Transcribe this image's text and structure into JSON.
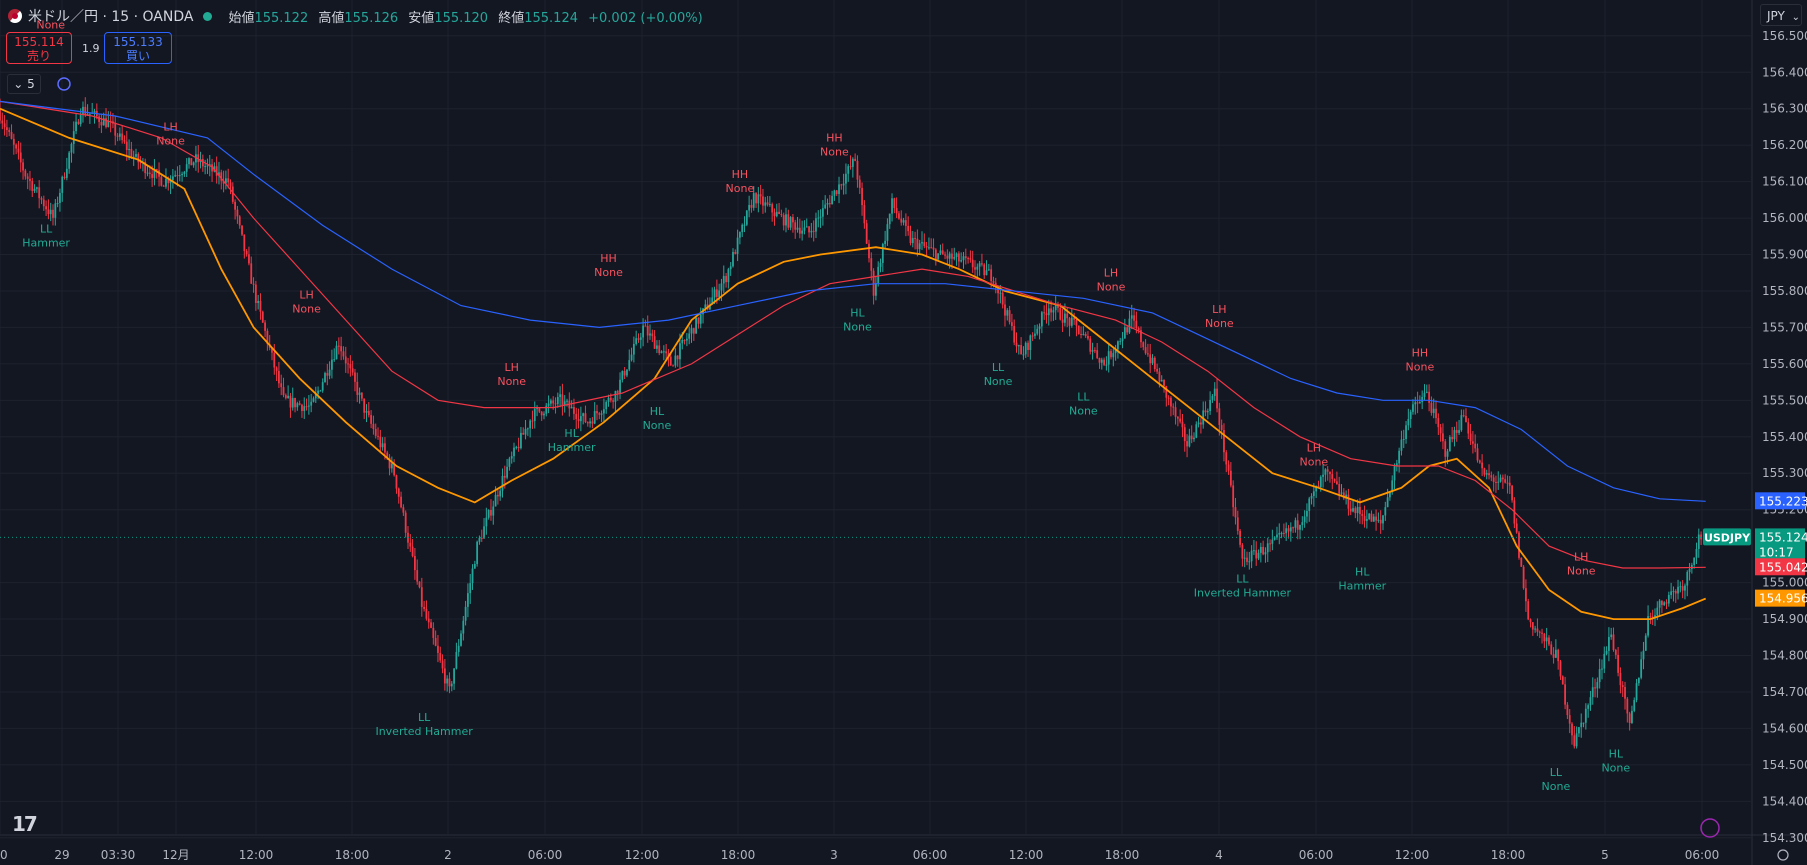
{
  "header": {
    "symbol_title": "米ドル／円 · 15 · OANDA",
    "open_label": "始値",
    "open": "155.122",
    "high_label": "高値",
    "high": "155.126",
    "low_label": "安値",
    "low": "155.120",
    "close_label": "終値",
    "close": "155.124",
    "change": "+0.002 (+0.00%)"
  },
  "trade": {
    "sell_price": "155.114",
    "sell_label": "売り",
    "spread": "1.9",
    "buy_price": "155.133",
    "buy_label": "買い"
  },
  "indicator_count": "5",
  "currency": "JPY",
  "colors": {
    "background": "#131722",
    "up": "#26a69a",
    "down": "#f23645",
    "ma_orange": "#ff9800",
    "ma_red": "#f23645",
    "ma_blue": "#2962ff",
    "label_high": "#f7525f",
    "label_low": "#22ab94"
  },
  "chart_data": {
    "type": "candlestick",
    "symbol": "USDJPY",
    "x_ticks": [
      "00",
      "29",
      "03:30",
      "12月",
      "12:00",
      "18:00",
      "2",
      "06:00",
      "12:00",
      "18:00",
      "3",
      "06:00",
      "12:00",
      "18:00",
      "4",
      "06:00",
      "12:00",
      "18:00",
      "5",
      "06:00"
    ],
    "y_ticks": [
      "156.500",
      "156.400",
      "156.300",
      "156.200",
      "156.100",
      "156.000",
      "155.900",
      "155.800",
      "155.700",
      "155.600",
      "155.500",
      "155.400",
      "155.300",
      "155.200",
      "155.000",
      "154.900",
      "154.800",
      "154.700",
      "154.600",
      "154.500",
      "154.400",
      "154.300"
    ],
    "ylim": [
      154.25,
      156.59
    ],
    "price_path": [
      [
        0,
        156.3
      ],
      [
        12,
        156.12
      ],
      [
        24,
        156.0
      ],
      [
        36,
        156.3
      ],
      [
        48,
        156.26
      ],
      [
        60,
        156.16
      ],
      [
        72,
        156.1
      ],
      [
        86,
        156.16
      ],
      [
        100,
        156.1
      ],
      [
        112,
        155.78
      ],
      [
        124,
        155.5
      ],
      [
        136,
        155.48
      ],
      [
        148,
        155.66
      ],
      [
        160,
        155.46
      ],
      [
        172,
        155.3
      ],
      [
        184,
        154.94
      ],
      [
        196,
        154.7
      ],
      [
        208,
        155.1
      ],
      [
        220,
        155.3
      ],
      [
        232,
        155.46
      ],
      [
        244,
        155.5
      ],
      [
        256,
        155.44
      ],
      [
        268,
        155.52
      ],
      [
        280,
        155.7
      ],
      [
        292,
        155.6
      ],
      [
        304,
        155.72
      ],
      [
        316,
        155.84
      ],
      [
        328,
        156.06
      ],
      [
        340,
        156.0
      ],
      [
        352,
        155.96
      ],
      [
        364,
        156.08
      ],
      [
        372,
        156.16
      ],
      [
        380,
        155.8
      ],
      [
        388,
        156.04
      ],
      [
        396,
        155.94
      ],
      [
        408,
        155.9
      ],
      [
        420,
        155.88
      ],
      [
        432,
        155.84
      ],
      [
        444,
        155.62
      ],
      [
        456,
        155.76
      ],
      [
        468,
        155.7
      ],
      [
        480,
        155.6
      ],
      [
        492,
        155.72
      ],
      [
        504,
        155.56
      ],
      [
        516,
        155.38
      ],
      [
        528,
        155.52
      ],
      [
        540,
        155.06
      ],
      [
        552,
        155.1
      ],
      [
        564,
        155.16
      ],
      [
        576,
        155.3
      ],
      [
        588,
        155.2
      ],
      [
        600,
        155.16
      ],
      [
        612,
        155.46
      ],
      [
        620,
        155.52
      ],
      [
        628,
        155.36
      ],
      [
        636,
        155.46
      ],
      [
        644,
        155.3
      ],
      [
        656,
        155.26
      ],
      [
        664,
        154.9
      ],
      [
        676,
        154.8
      ],
      [
        684,
        154.56
      ],
      [
        692,
        154.7
      ],
      [
        700,
        154.86
      ],
      [
        708,
        154.6
      ],
      [
        716,
        154.9
      ],
      [
        724,
        154.96
      ],
      [
        732,
        155.0
      ],
      [
        738,
        155.124
      ]
    ],
    "candle_count": 739,
    "candle_unit_minutes": 15,
    "moving_averages": [
      {
        "color": "#ff9800",
        "points": [
          [
            0,
            156.3
          ],
          [
            30,
            156.22
          ],
          [
            60,
            156.16
          ],
          [
            80,
            156.08
          ],
          [
            96,
            155.86
          ],
          [
            110,
            155.7
          ],
          [
            130,
            155.56
          ],
          [
            150,
            155.44
          ],
          [
            172,
            155.32
          ],
          [
            190,
            155.26
          ],
          [
            206,
            155.22
          ],
          [
            222,
            155.28
          ],
          [
            240,
            155.34
          ],
          [
            262,
            155.44
          ],
          [
            284,
            155.56
          ],
          [
            300,
            155.72
          ],
          [
            320,
            155.82
          ],
          [
            340,
            155.88
          ],
          [
            356,
            155.9
          ],
          [
            380,
            155.92
          ],
          [
            400,
            155.9
          ],
          [
            416,
            155.86
          ],
          [
            436,
            155.8
          ],
          [
            460,
            155.76
          ],
          [
            480,
            155.66
          ],
          [
            500,
            155.56
          ],
          [
            516,
            155.48
          ],
          [
            536,
            155.38
          ],
          [
            552,
            155.3
          ],
          [
            572,
            155.26
          ],
          [
            590,
            155.22
          ],
          [
            608,
            155.26
          ],
          [
            620,
            155.32
          ],
          [
            632,
            155.34
          ],
          [
            646,
            155.26
          ],
          [
            658,
            155.1
          ],
          [
            672,
            154.98
          ],
          [
            686,
            154.92
          ],
          [
            700,
            154.9
          ],
          [
            716,
            154.9
          ],
          [
            730,
            154.93
          ],
          [
            740,
            154.956
          ]
        ]
      },
      {
        "color": "#f23645",
        "points": [
          [
            0,
            156.32
          ],
          [
            40,
            156.28
          ],
          [
            70,
            156.22
          ],
          [
            92,
            156.14
          ],
          [
            110,
            156.0
          ],
          [
            130,
            155.86
          ],
          [
            150,
            155.72
          ],
          [
            170,
            155.58
          ],
          [
            190,
            155.5
          ],
          [
            210,
            155.48
          ],
          [
            240,
            155.48
          ],
          [
            270,
            155.52
          ],
          [
            300,
            155.6
          ],
          [
            320,
            155.68
          ],
          [
            340,
            155.76
          ],
          [
            360,
            155.82
          ],
          [
            380,
            155.84
          ],
          [
            400,
            155.86
          ],
          [
            420,
            155.84
          ],
          [
            440,
            155.8
          ],
          [
            460,
            155.76
          ],
          [
            484,
            155.72
          ],
          [
            504,
            155.66
          ],
          [
            524,
            155.58
          ],
          [
            544,
            155.48
          ],
          [
            564,
            155.4
          ],
          [
            586,
            155.34
          ],
          [
            606,
            155.32
          ],
          [
            624,
            155.32
          ],
          [
            640,
            155.28
          ],
          [
            656,
            155.2
          ],
          [
            672,
            155.1
          ],
          [
            688,
            155.06
          ],
          [
            704,
            155.04
          ],
          [
            720,
            155.04
          ],
          [
            740,
            155.042
          ]
        ]
      },
      {
        "color": "#2962ff",
        "points": [
          [
            0,
            156.32
          ],
          [
            50,
            156.28
          ],
          [
            90,
            156.22
          ],
          [
            110,
            156.12
          ],
          [
            140,
            155.98
          ],
          [
            170,
            155.86
          ],
          [
            200,
            155.76
          ],
          [
            230,
            155.72
          ],
          [
            260,
            155.7
          ],
          [
            290,
            155.72
          ],
          [
            320,
            155.76
          ],
          [
            350,
            155.8
          ],
          [
            380,
            155.82
          ],
          [
            410,
            155.82
          ],
          [
            440,
            155.8
          ],
          [
            470,
            155.78
          ],
          [
            500,
            155.74
          ],
          [
            520,
            155.68
          ],
          [
            540,
            155.62
          ],
          [
            560,
            155.56
          ],
          [
            580,
            155.52
          ],
          [
            600,
            155.5
          ],
          [
            620,
            155.5
          ],
          [
            640,
            155.48
          ],
          [
            660,
            155.42
          ],
          [
            680,
            155.32
          ],
          [
            700,
            155.26
          ],
          [
            720,
            155.23
          ],
          [
            740,
            155.223
          ]
        ]
      }
    ],
    "annotations": [
      {
        "kind": "high",
        "label": [
          "None"
        ],
        "x": 22,
        "y": 156.52
      },
      {
        "kind": "low",
        "label": [
          "LL",
          "Hammer"
        ],
        "x": 20,
        "y": 155.96
      },
      {
        "kind": "high",
        "label": [
          "LH",
          "None"
        ],
        "x": 74,
        "y": 156.24
      },
      {
        "kind": "high",
        "label": [
          "LH",
          "None"
        ],
        "x": 133,
        "y": 155.78
      },
      {
        "kind": "low",
        "label": [
          "LL",
          "Inverted Hammer"
        ],
        "x": 184,
        "y": 154.62
      },
      {
        "kind": "high",
        "label": [
          "LH",
          "None"
        ],
        "x": 222,
        "y": 155.58
      },
      {
        "kind": "low",
        "label": [
          "HL",
          "Hammer"
        ],
        "x": 248,
        "y": 155.4
      },
      {
        "kind": "high",
        "label": [
          "HH",
          "None"
        ],
        "x": 264,
        "y": 155.88
      },
      {
        "kind": "low",
        "label": [
          "HL",
          "None"
        ],
        "x": 285,
        "y": 155.46
      },
      {
        "kind": "high",
        "label": [
          "HH",
          "None"
        ],
        "x": 321,
        "y": 156.11
      },
      {
        "kind": "high",
        "label": [
          "HH",
          "None"
        ],
        "x": 362,
        "y": 156.21
      },
      {
        "kind": "low",
        "label": [
          "HL",
          "None"
        ],
        "x": 372,
        "y": 155.73
      },
      {
        "kind": "low",
        "label": [
          "LL",
          "None"
        ],
        "x": 433,
        "y": 155.58
      },
      {
        "kind": "high",
        "label": [
          "LH",
          "None"
        ],
        "x": 482,
        "y": 155.84
      },
      {
        "kind": "low",
        "label": [
          "LL",
          "None"
        ],
        "x": 470,
        "y": 155.5
      },
      {
        "kind": "high",
        "label": [
          "LH",
          "None"
        ],
        "x": 529,
        "y": 155.74
      },
      {
        "kind": "low",
        "label": [
          "LL",
          "Inverted Hammer"
        ],
        "x": 539,
        "y": 155.0
      },
      {
        "kind": "high",
        "label": [
          "LH",
          "None"
        ],
        "x": 570,
        "y": 155.36
      },
      {
        "kind": "low",
        "label": [
          "HL",
          "Hammer"
        ],
        "x": 591,
        "y": 155.02
      },
      {
        "kind": "high",
        "label": [
          "HH",
          "None"
        ],
        "x": 616,
        "y": 155.62
      },
      {
        "kind": "high",
        "label": [
          "LH",
          "None"
        ],
        "x": 686,
        "y": 155.06
      },
      {
        "kind": "low",
        "label": [
          "LL",
          "None"
        ],
        "x": 675,
        "y": 154.47
      },
      {
        "kind": "low",
        "label": [
          "HL",
          "None"
        ],
        "x": 701,
        "y": 154.52
      }
    ],
    "price_labels": [
      {
        "text": "155.223",
        "price": 155.223,
        "bg": "#2962ff"
      },
      {
        "text": "USDJPY",
        "price": 155.124,
        "bg": "#089981",
        "left_tag": true
      },
      {
        "text": "155.124",
        "price": 155.124,
        "bg": "#089981",
        "sub": "10:17"
      },
      {
        "text": "155.042",
        "price": 155.042,
        "bg": "#f23645"
      },
      {
        "text": "154.956",
        "price": 154.956,
        "bg": "#ff9800"
      }
    ]
  }
}
